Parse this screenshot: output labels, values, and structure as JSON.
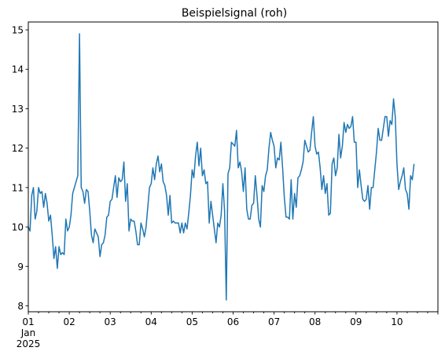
{
  "chart_data": {
    "type": "line",
    "title": "Beispielsignal (roh)",
    "xlabel": "",
    "ylabel": "",
    "x_start": "2025-01-01T00:00",
    "x_step_hours": 1,
    "xlim_hours": [
      0,
      240
    ],
    "ylim": [
      7.85,
      15.2
    ],
    "grid": false,
    "x_tick_labels": [
      {
        "hour": 0,
        "label": "01",
        "sublabels": [
          "Jan",
          "2025"
        ]
      },
      {
        "hour": 24,
        "label": "02"
      },
      {
        "hour": 48,
        "label": "03"
      },
      {
        "hour": 72,
        "label": "04"
      },
      {
        "hour": 96,
        "label": "05"
      },
      {
        "hour": 120,
        "label": "06"
      },
      {
        "hour": 144,
        "label": "07"
      },
      {
        "hour": 168,
        "label": "08"
      },
      {
        "hour": 192,
        "label": "09"
      },
      {
        "hour": 216,
        "label": "10"
      }
    ],
    "y_ticks": [
      8,
      9,
      10,
      11,
      12,
      13,
      14,
      15
    ],
    "series": [
      {
        "color": "#1f77b4",
        "values": [
          10.0,
          9.9,
          10.8,
          11.0,
          10.2,
          10.4,
          11.0,
          10.85,
          10.9,
          10.5,
          10.85,
          10.6,
          10.15,
          10.3,
          9.8,
          9.2,
          9.5,
          8.95,
          9.5,
          9.3,
          9.35,
          9.3,
          10.2,
          9.9,
          10.0,
          10.3,
          10.85,
          11.0,
          11.15,
          11.3,
          14.9,
          11.0,
          10.9,
          10.6,
          10.95,
          10.9,
          10.4,
          9.8,
          9.6,
          9.95,
          9.85,
          9.75,
          9.25,
          9.55,
          9.6,
          9.8,
          10.25,
          10.3,
          10.65,
          10.7,
          11.0,
          11.3,
          10.75,
          11.25,
          11.15,
          11.2,
          11.65,
          10.65,
          11.1,
          9.9,
          10.2,
          10.15,
          10.15,
          9.9,
          9.55,
          9.55,
          10.1,
          9.95,
          9.75,
          10.0,
          10.5,
          11.0,
          11.1,
          11.5,
          11.2,
          11.6,
          11.8,
          11.4,
          11.6,
          11.15,
          11.05,
          10.8,
          10.3,
          10.8,
          10.1,
          10.15,
          10.1,
          10.1,
          10.1,
          9.85,
          10.1,
          9.85,
          10.1,
          9.95,
          10.35,
          10.8,
          11.45,
          11.25,
          11.8,
          12.15,
          11.55,
          12.0,
          11.3,
          11.45,
          11.1,
          11.15,
          10.1,
          10.65,
          10.3,
          9.95,
          9.6,
          10.1,
          10.0,
          10.3,
          11.1,
          10.4,
          8.15,
          11.35,
          11.5,
          12.15,
          12.1,
          12.05,
          12.45,
          11.5,
          11.65,
          11.4,
          10.9,
          11.5,
          10.45,
          10.2,
          10.2,
          10.55,
          10.6,
          11.3,
          10.8,
          10.2,
          10.0,
          11.05,
          10.9,
          11.3,
          11.45,
          12.0,
          12.4,
          12.2,
          12.05,
          11.5,
          11.75,
          11.7,
          12.15,
          11.5,
          10.75,
          10.25,
          10.25,
          10.2,
          11.2,
          10.2,
          10.85,
          10.5,
          11.25,
          11.3,
          11.45,
          11.65,
          12.2,
          12.05,
          11.9,
          11.95,
          12.4,
          12.8,
          12.05,
          11.85,
          11.9,
          11.5,
          10.95,
          11.3,
          10.85,
          11.1,
          10.3,
          10.35,
          11.6,
          11.75,
          11.3,
          11.5,
          12.35,
          11.75,
          12.05,
          12.65,
          12.4,
          12.6,
          12.5,
          12.55,
          12.8,
          12.15,
          12.15,
          11.0,
          11.45,
          11.05,
          10.7,
          10.65,
          10.7,
          11.05,
          10.45,
          11.0,
          11.0,
          11.45,
          11.9,
          12.5,
          12.2,
          12.2,
          12.5,
          12.8,
          12.8,
          12.3,
          12.7,
          12.6,
          13.25,
          12.8,
          11.6,
          10.95,
          11.15,
          11.3,
          11.5,
          10.95,
          10.85,
          10.45,
          11.3,
          11.2,
          11.6
        ]
      }
    ]
  }
}
